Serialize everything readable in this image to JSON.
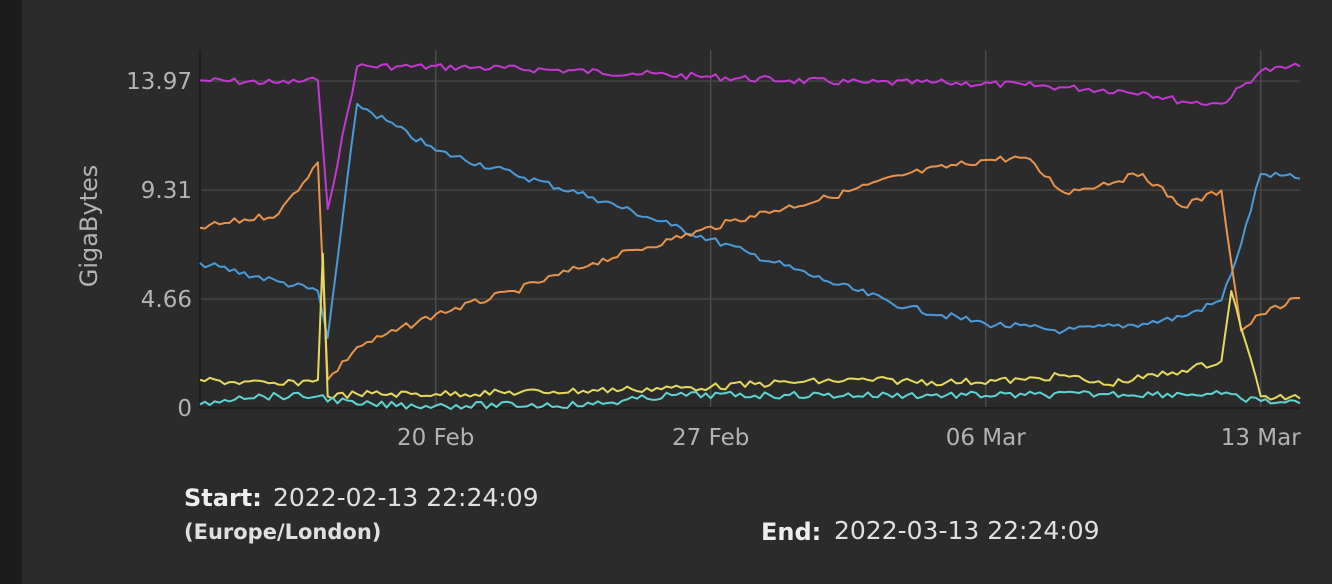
{
  "chart_data": {
    "type": "line",
    "title": "",
    "xlabel": "",
    "ylabel": "GigaBytes",
    "ylim": [
      0,
      15.3
    ],
    "xlim": [
      "2022-02-14",
      "2022-03-14"
    ],
    "grid": true,
    "y_ticks": [
      {
        "value": 0,
        "label": "0"
      },
      {
        "value": 4.66,
        "label": "4.66"
      },
      {
        "value": 9.31,
        "label": "9.31"
      },
      {
        "value": 13.97,
        "label": "13.97"
      }
    ],
    "x_ticks": [
      {
        "value": "2022-02-20",
        "label": "20 Feb"
      },
      {
        "value": "2022-02-27",
        "label": "27 Feb"
      },
      {
        "value": "2022-03-06",
        "label": "06 Mar"
      },
      {
        "value": "2022-03-13",
        "label": "13 Mar"
      }
    ],
    "series": [
      {
        "color": "#c239d1",
        "x": [
          "2022-02-14",
          "2022-02-16",
          "2022-02-17",
          "2022-02-17 06:00",
          "2022-02-18",
          "2022-02-19",
          "2022-02-21",
          "2022-02-23",
          "2022-02-25",
          "2022-02-27",
          "2022-03-01",
          "2022-03-03",
          "2022-03-05",
          "2022-03-07",
          "2022-03-08",
          "2022-03-10",
          "2022-03-11",
          "2022-03-12",
          "2022-03-13",
          "2022-03-14"
        ],
        "values": [
          14.0,
          13.9,
          14.0,
          8.5,
          14.6,
          14.6,
          14.55,
          14.45,
          14.3,
          14.15,
          14.0,
          13.9,
          13.9,
          13.8,
          13.7,
          13.5,
          13.1,
          13.0,
          14.4,
          14.6
        ]
      },
      {
        "color": "#4a9bd9",
        "x": [
          "2022-02-14",
          "2022-02-16",
          "2022-02-17",
          "2022-02-17 06:00",
          "2022-02-18",
          "2022-02-20",
          "2022-02-22",
          "2022-02-24",
          "2022-02-26",
          "2022-02-28",
          "2022-03-02",
          "2022-03-04",
          "2022-03-06",
          "2022-03-08",
          "2022-03-10",
          "2022-03-11",
          "2022-03-12",
          "2022-03-12 12:00",
          "2022-03-13",
          "2022-03-14"
        ],
        "values": [
          6.2,
          5.4,
          5.0,
          3.0,
          13.0,
          11.0,
          10.0,
          9.0,
          7.8,
          6.6,
          5.4,
          4.3,
          3.6,
          3.3,
          3.6,
          3.9,
          4.6,
          7.0,
          10.0,
          9.8
        ]
      },
      {
        "color": "#e8934a",
        "x": [
          "2022-02-14",
          "2022-02-16",
          "2022-02-17",
          "2022-02-17 06:00",
          "2022-02-18",
          "2022-02-20",
          "2022-02-22",
          "2022-02-24",
          "2022-02-26",
          "2022-02-28",
          "2022-03-02",
          "2022-03-04",
          "2022-03-06",
          "2022-03-07",
          "2022-03-08",
          "2022-03-10",
          "2022-03-11",
          "2022-03-12",
          "2022-03-12 12:00",
          "2022-03-13",
          "2022-03-14"
        ],
        "values": [
          7.7,
          8.3,
          10.5,
          1.2,
          2.6,
          4.0,
          5.0,
          6.2,
          7.2,
          8.2,
          9.0,
          10.0,
          10.6,
          10.7,
          9.2,
          10.0,
          8.6,
          9.3,
          3.3,
          4.0,
          4.7
        ]
      },
      {
        "color": "#e6d95e",
        "x": [
          "2022-02-14",
          "2022-02-16",
          "2022-02-17",
          "2022-02-17 03:00",
          "2022-02-17 06:00",
          "2022-02-18",
          "2022-02-20",
          "2022-02-23",
          "2022-02-25",
          "2022-02-27",
          "2022-03-01",
          "2022-03-03",
          "2022-03-05",
          "2022-03-07",
          "2022-03-08",
          "2022-03-09",
          "2022-03-11",
          "2022-03-12",
          "2022-03-12 06:00",
          "2022-03-13",
          "2022-03-14"
        ],
        "values": [
          1.2,
          1.0,
          1.2,
          6.6,
          0.5,
          0.6,
          0.6,
          0.7,
          0.8,
          0.9,
          1.1,
          1.2,
          1.1,
          1.2,
          1.4,
          1.0,
          1.6,
          2.0,
          5.0,
          0.5,
          0.4
        ]
      },
      {
        "color": "#5fd3d3",
        "x": [
          "2022-02-14",
          "2022-02-15",
          "2022-02-17",
          "2022-02-18",
          "2022-02-20",
          "2022-02-24",
          "2022-02-26",
          "2022-03-01",
          "2022-03-04",
          "2022-03-07",
          "2022-03-09",
          "2022-03-11",
          "2022-03-12",
          "2022-03-12 12:00",
          "2022-03-13",
          "2022-03-14"
        ],
        "values": [
          0.15,
          0.5,
          0.5,
          0.15,
          0.1,
          0.15,
          0.55,
          0.55,
          0.55,
          0.55,
          0.6,
          0.6,
          0.6,
          0.4,
          0.3,
          0.2
        ]
      }
    ]
  },
  "footer": {
    "start_label": "Start:",
    "start_value": "2022-02-13 22:24:09",
    "start_timezone": "(Europe/London)",
    "end_label": "End:",
    "end_value": "2022-03-13 22:24:09"
  }
}
